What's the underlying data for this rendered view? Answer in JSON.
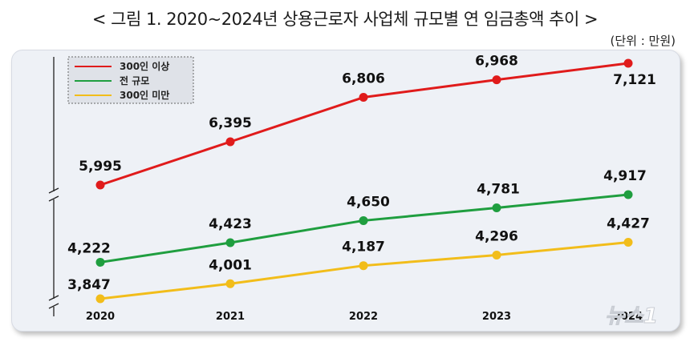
{
  "title": "< 그림 1. 2020~2024년 상용근로자 사업체 규모별 연 임금총액 추이 >",
  "unit": "(단위 : 만원)",
  "watermark": "뉴스1",
  "chart_data": {
    "type": "line",
    "title": "< 그림 1. 2020~2024년 상용근로자 사업체 규모별 연 임금총액 추이 >",
    "xlabel": "",
    "ylabel": "",
    "x": [
      "2020",
      "2021",
      "2022",
      "2023",
      "2024"
    ],
    "series": [
      {
        "name": "300인 이상",
        "color": "#e01b1b",
        "values": [
          5995,
          6395,
          6806,
          6968,
          7121
        ],
        "labels": [
          "5,995",
          "6,395",
          "6,806",
          "6,968",
          "7,121"
        ]
      },
      {
        "name": "전 규모",
        "color": "#1f9e3f",
        "values": [
          4222,
          4423,
          4650,
          4781,
          4917
        ],
        "labels": [
          "4,222",
          "4,423",
          "4,650",
          "4,781",
          "4,917"
        ]
      },
      {
        "name": "300인 미만",
        "color": "#f2bd1a",
        "values": [
          3847,
          4001,
          4187,
          4296,
          4427
        ],
        "labels": [
          "3,847",
          "4,001",
          "4,187",
          "4,296",
          "4,427"
        ]
      }
    ],
    "y_axis_break": true,
    "legend": "top-left"
  }
}
